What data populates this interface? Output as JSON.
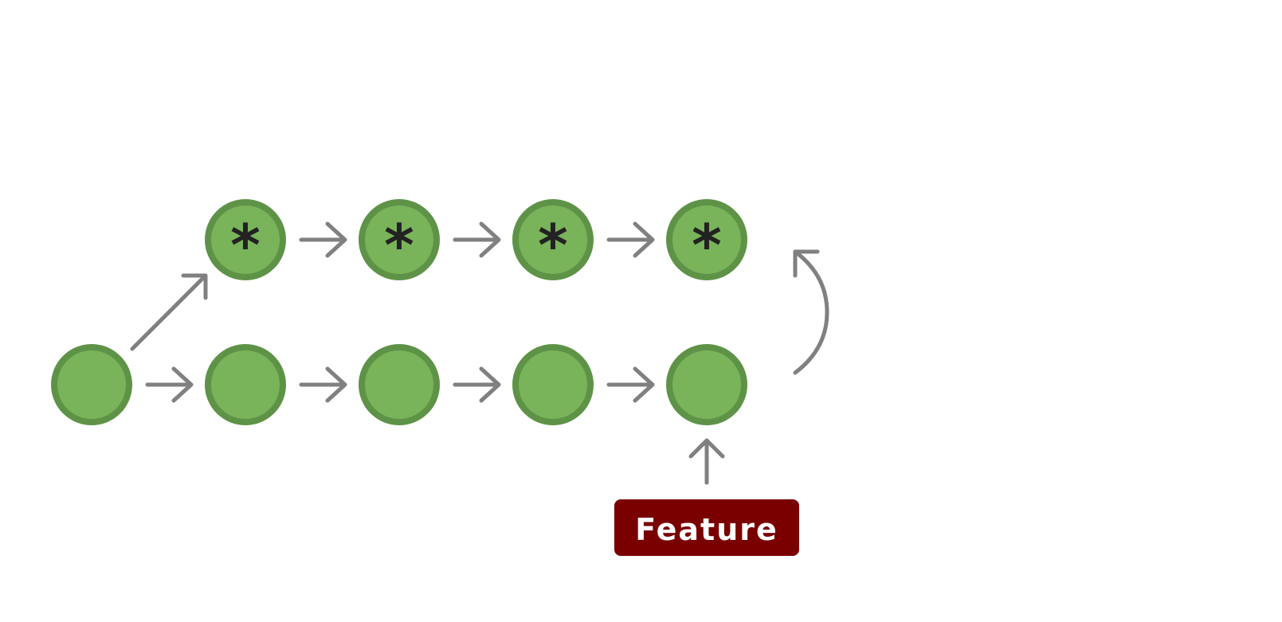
{
  "colors": {
    "node_fill": "#79b35a",
    "node_stroke": "#5e9347",
    "arrow": "#808080",
    "asterisk": "#222222",
    "label_bg": "#7a0000",
    "label_text": "#ffffff"
  },
  "diagram": {
    "top_row": {
      "marker": "*",
      "node_count": 4
    },
    "bottom_row": {
      "node_count": 5
    },
    "feature_label": "Feature"
  }
}
